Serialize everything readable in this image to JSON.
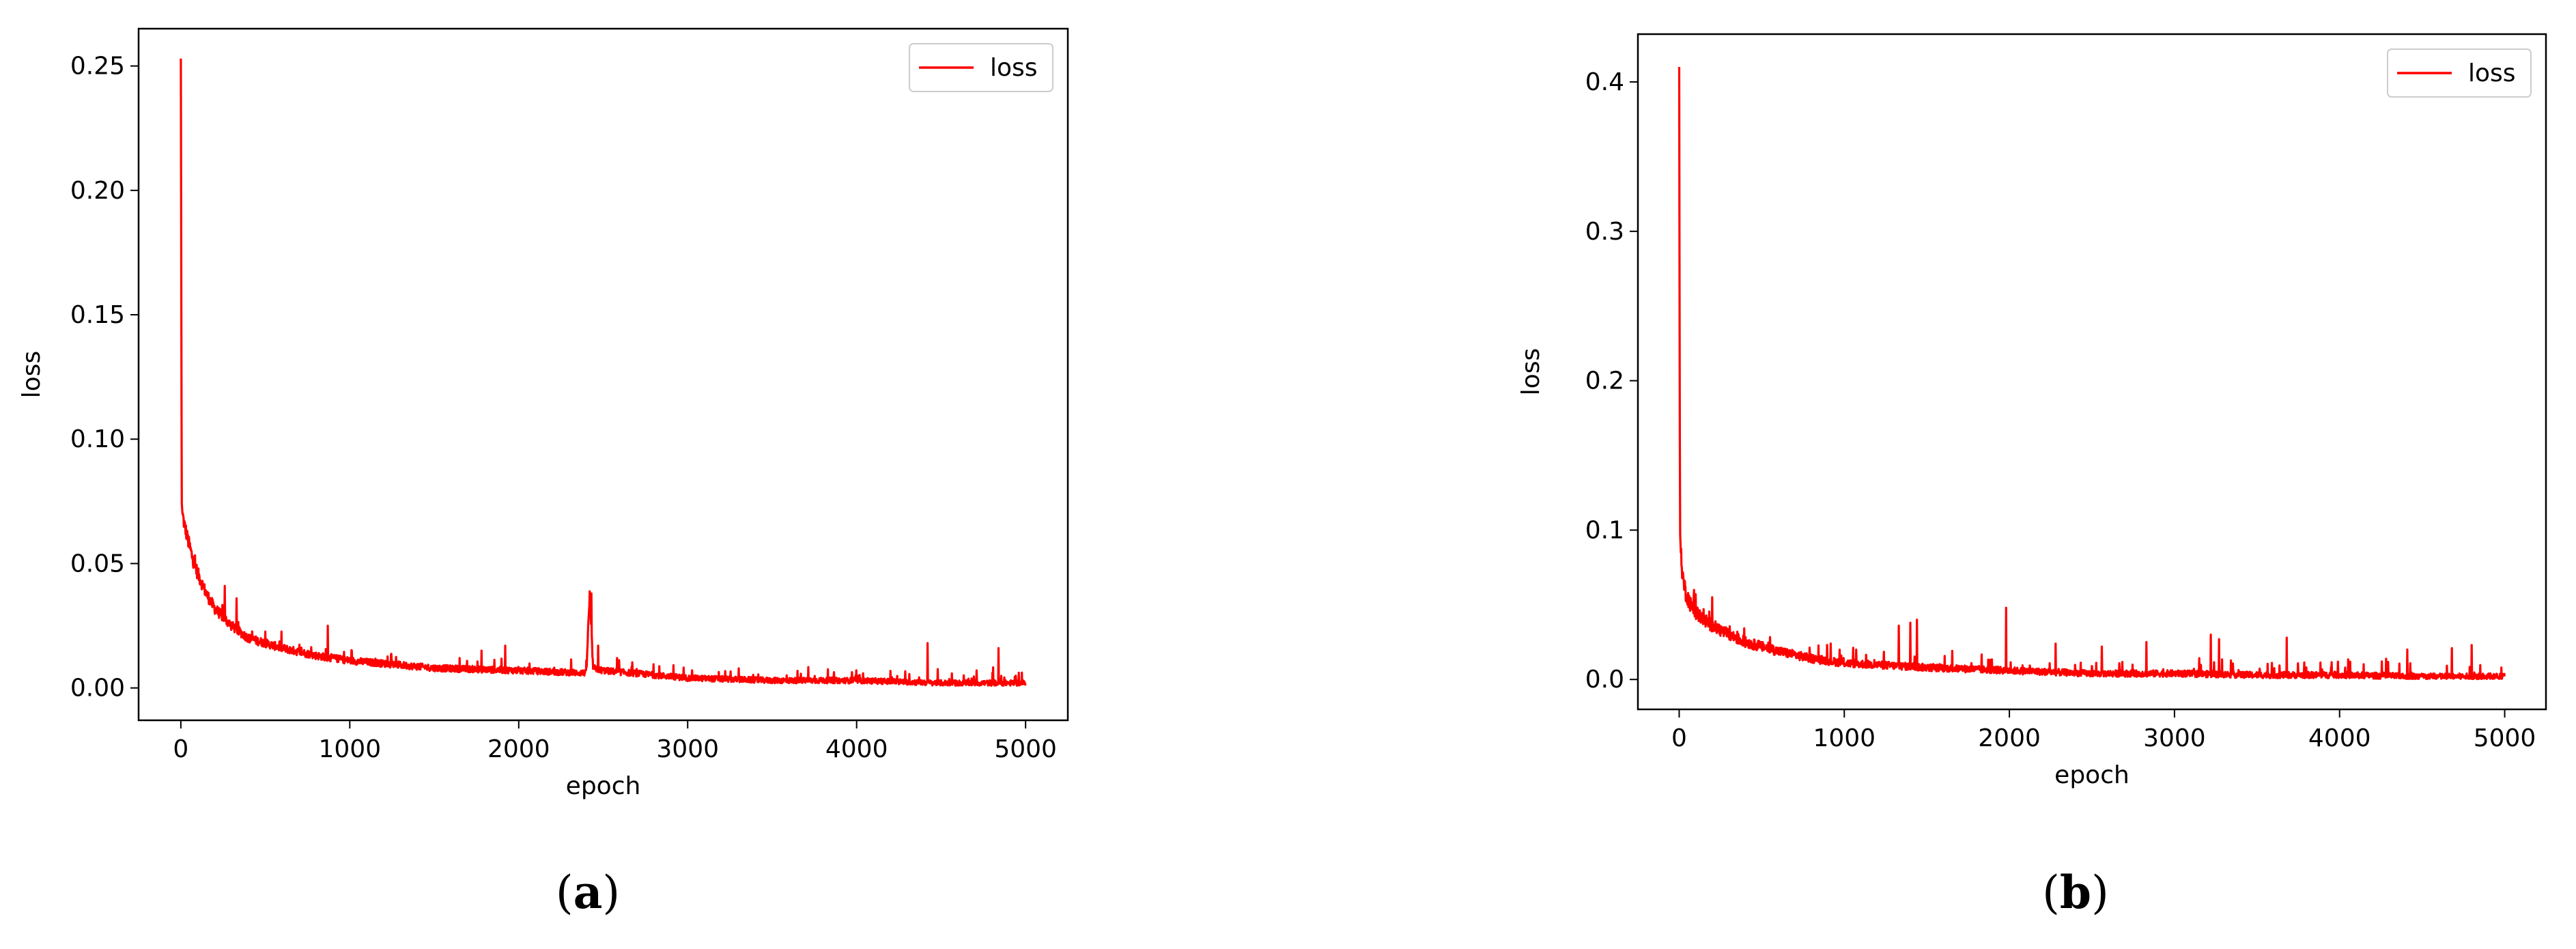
{
  "line_color": "#ff0000",
  "chart_data": [
    {
      "type": "line",
      "panel_label": "a",
      "xlabel": "epoch",
      "ylabel": "loss",
      "xlim": [
        -250,
        5250
      ],
      "ylim": [
        -0.013,
        0.265
      ],
      "xticks": [
        0,
        1000,
        2000,
        3000,
        4000,
        5000
      ],
      "xtick_labels": [
        "0",
        "1000",
        "2000",
        "3000",
        "4000",
        "5000"
      ],
      "yticks": [
        0.0,
        0.05,
        0.1,
        0.15,
        0.2,
        0.25
      ],
      "ytick_labels": [
        "0.00",
        "0.05",
        "0.10",
        "0.15",
        "0.20",
        "0.25"
      ],
      "legend": "top-right",
      "grid": false,
      "series": [
        {
          "name": "loss",
          "color": "#ff0000",
          "x": [
            0,
            5,
            10,
            20,
            40,
            70,
            100,
            150,
            200,
            300,
            400,
            600,
            800,
            1000,
            1500,
            2000,
            2400,
            2420,
            2440,
            2500,
            3000,
            3500,
            4000,
            4500,
            5000
          ],
          "y": [
            0.253,
            0.075,
            0.07,
            0.066,
            0.06,
            0.052,
            0.046,
            0.038,
            0.032,
            0.025,
            0.02,
            0.016,
            0.013,
            0.011,
            0.008,
            0.007,
            0.006,
            0.037,
            0.008,
            0.007,
            0.004,
            0.003,
            0.003,
            0.002,
            0.002
          ],
          "spikes": [
            {
              "x": 260,
              "y": 0.041
            },
            {
              "x": 330,
              "y": 0.036
            },
            {
              "x": 870,
              "y": 0.025
            },
            {
              "x": 1780,
              "y": 0.015
            },
            {
              "x": 1920,
              "y": 0.017
            },
            {
              "x": 2430,
              "y": 0.038
            },
            {
              "x": 2470,
              "y": 0.017
            },
            {
              "x": 4420,
              "y": 0.018
            },
            {
              "x": 4840,
              "y": 0.016
            }
          ],
          "noise_amplitude": 0.006
        }
      ]
    },
    {
      "type": "line",
      "panel_label": "b",
      "xlabel": "epoch",
      "ylabel": "loss",
      "xlim": [
        -250,
        5250
      ],
      "ylim": [
        -0.02,
        0.432
      ],
      "xticks": [
        0,
        1000,
        2000,
        3000,
        4000,
        5000
      ],
      "xtick_labels": [
        "0",
        "1000",
        "2000",
        "3000",
        "4000",
        "5000"
      ],
      "yticks": [
        0.0,
        0.1,
        0.2,
        0.3,
        0.4
      ],
      "ytick_labels": [
        "0.0",
        "0.1",
        "0.2",
        "0.3",
        "0.4"
      ],
      "legend": "top-right",
      "grid": false,
      "series": [
        {
          "name": "loss",
          "color": "#ff0000",
          "x": [
            0,
            5,
            10,
            20,
            40,
            70,
            100,
            150,
            200,
            300,
            400,
            600,
            800,
            1000,
            1500,
            2000,
            2500,
            3000,
            3500,
            4000,
            4500,
            5000
          ],
          "y": [
            0.41,
            0.1,
            0.085,
            0.07,
            0.058,
            0.05,
            0.045,
            0.04,
            0.036,
            0.03,
            0.025,
            0.019,
            0.014,
            0.011,
            0.008,
            0.006,
            0.004,
            0.004,
            0.003,
            0.003,
            0.002,
            0.002
          ],
          "spikes": [
            {
              "x": 200,
              "y": 0.055
            },
            {
              "x": 1330,
              "y": 0.036
            },
            {
              "x": 1400,
              "y": 0.038
            },
            {
              "x": 1440,
              "y": 0.04
            },
            {
              "x": 1980,
              "y": 0.048
            },
            {
              "x": 2280,
              "y": 0.024
            },
            {
              "x": 2560,
              "y": 0.022
            },
            {
              "x": 2830,
              "y": 0.025
            },
            {
              "x": 3220,
              "y": 0.03
            },
            {
              "x": 3270,
              "y": 0.027
            },
            {
              "x": 3680,
              "y": 0.028
            },
            {
              "x": 4410,
              "y": 0.02
            },
            {
              "x": 4680,
              "y": 0.021
            },
            {
              "x": 4800,
              "y": 0.023
            },
            {
              "x": 4980,
              "y": 0.008
            }
          ],
          "noise_amplitude": 0.011
        }
      ]
    }
  ]
}
